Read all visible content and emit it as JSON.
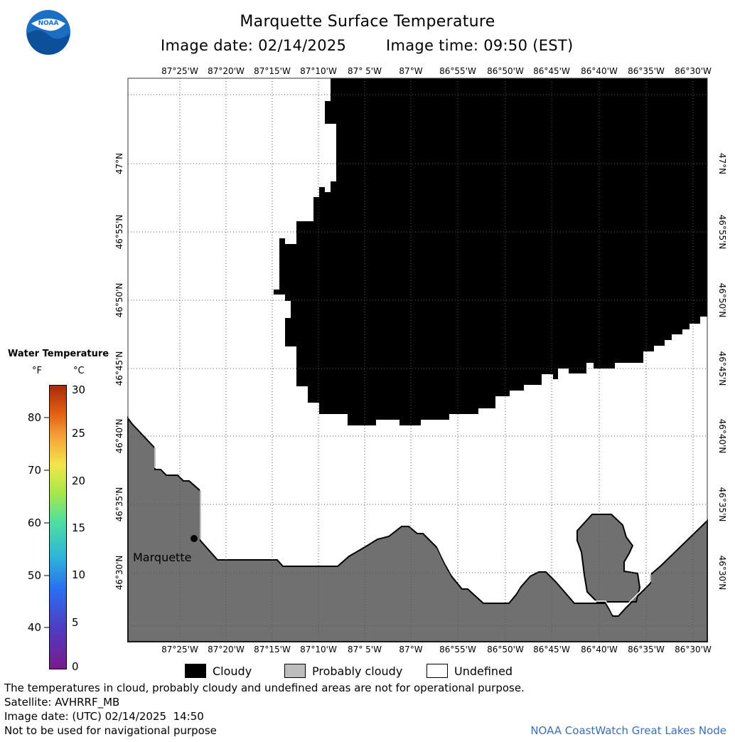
{
  "header": {
    "title": "Marquette Surface Temperature",
    "image_date": "Image date: 02/14/2025",
    "image_time": "Image time: 09:50 (EST)"
  },
  "logo": {
    "text": "NOAA"
  },
  "map": {
    "lon_labels": [
      "87°25'W",
      "87°20'W",
      "87°15'W",
      "87°10'W",
      "87° 5'W",
      "87°W",
      "86°55'W",
      "86°50'W",
      "86°45'W",
      "86°40'W",
      "86°35'W",
      "86°30'W"
    ],
    "lat_labels": [
      "47°N",
      "46°55'N",
      "46°50'N",
      "46°45'N",
      "46°40'N",
      "46°35'N",
      "46°30'N"
    ],
    "city_label": "Marquette",
    "colors": {
      "cloudy": "#000000",
      "probably_cloudy": "#707070",
      "undefined": "#ffffff"
    }
  },
  "colorbar": {
    "title": "Water Temperature",
    "unit_f": "°F",
    "unit_c": "°C",
    "f_ticks": [
      "80",
      "70",
      "60",
      "50",
      "40"
    ],
    "c_ticks": [
      "30",
      "25",
      "20",
      "15",
      "10",
      "5",
      "0"
    ]
  },
  "legend": {
    "cloudy": "Cloudy",
    "probably_cloudy": "Probably cloudy",
    "undefined": "Undefined"
  },
  "footer": {
    "line1": "The temperatures in cloud, probably cloudy and undefined areas are not for operational purpose.",
    "line2": "Satellite: AVHRRF_MB",
    "line3": "Image date: (UTC) 02/14/2025  14:50",
    "line4": "Not to be used for navigational purpose",
    "credit": "NOAA CoastWatch Great Lakes Node"
  }
}
